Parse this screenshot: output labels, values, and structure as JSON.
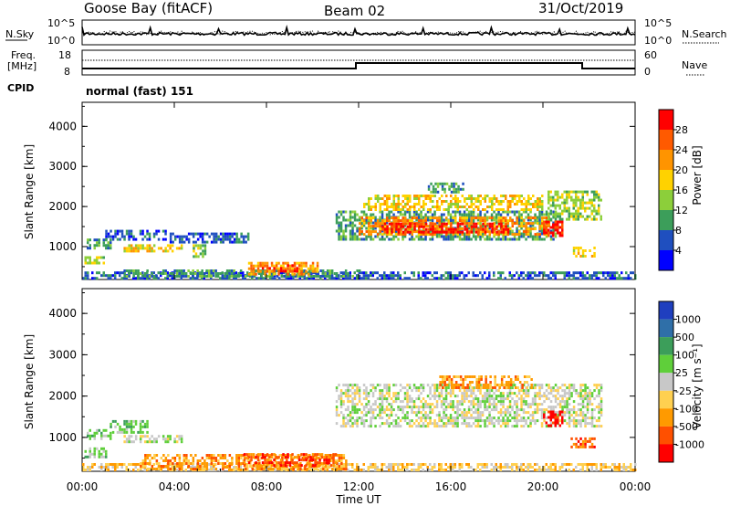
{
  "header": {
    "station": "Goose Bay (fitACF)",
    "beam": "Beam 02",
    "date": "31/Oct/2019"
  },
  "noise_panel": {
    "left_label": "N.Sky",
    "right_label": "N.Search",
    "left_ticks": [
      "10^5",
      "10^0"
    ],
    "right_ticks": [
      "10^5",
      "10^0"
    ]
  },
  "freq_panel": {
    "left_label_line1": "Freq.",
    "left_label_line2": "[MHz]",
    "left_ticks": [
      "18",
      "8"
    ],
    "right_ticks": [
      "60",
      "0"
    ],
    "right_label": "Nave"
  },
  "cpid": {
    "label": "CPID",
    "value": "normal (fast) 151"
  },
  "chart_data": [
    {
      "type": "heatmap",
      "name": "power",
      "ylabel": "Slant Range [km]",
      "yticks": [
        "4000",
        "3000",
        "2000",
        "1000"
      ],
      "ylim": [
        180,
        4600
      ],
      "xlim_hours": [
        0,
        24
      ],
      "colorbar": {
        "label": "Power [dB]",
        "ticks": [
          "28",
          "24",
          "20",
          "16",
          "12",
          "8",
          "4"
        ],
        "colors": [
          "#ff0000",
          "#ff5a00",
          "#ff9400",
          "#ffd200",
          "#8ccf3a",
          "#3c9e5a",
          "#1f4fbf",
          "#0000ff"
        ]
      },
      "regions": [
        {
          "t0": 0.0,
          "t1": 24.0,
          "r0": 200,
          "r1": 380,
          "level": 1
        },
        {
          "t0": 0.2,
          "t1": 1.2,
          "r0": 950,
          "r1": 1200,
          "level": 2
        },
        {
          "t0": 0.1,
          "t1": 1.0,
          "r0": 560,
          "r1": 760,
          "level": 3
        },
        {
          "t0": 1.0,
          "t1": 3.6,
          "r0": 1150,
          "r1": 1420,
          "level": 1
        },
        {
          "t0": 1.8,
          "t1": 4.3,
          "r0": 880,
          "r1": 1060,
          "level": 4
        },
        {
          "t0": 3.8,
          "t1": 7.2,
          "r0": 1100,
          "r1": 1350,
          "level": 1
        },
        {
          "t0": 4.8,
          "t1": 5.3,
          "r0": 750,
          "r1": 1060,
          "level": 3
        },
        {
          "t0": 1.8,
          "t1": 12.0,
          "r0": 240,
          "r1": 430,
          "level": 2
        },
        {
          "t0": 7.2,
          "t1": 10.2,
          "r0": 300,
          "r1": 620,
          "level": 5
        },
        {
          "t0": 7.6,
          "t1": 9.4,
          "r0": 360,
          "r1": 560,
          "level": 6
        },
        {
          "t0": 11.0,
          "t1": 20.6,
          "r0": 1200,
          "r1": 1900,
          "level": 2
        },
        {
          "t0": 12.0,
          "t1": 20.3,
          "r0": 1300,
          "r1": 1750,
          "level": 5
        },
        {
          "t0": 13.0,
          "t1": 18.5,
          "r0": 1350,
          "r1": 1600,
          "level": 7
        },
        {
          "t0": 12.2,
          "t1": 20.0,
          "r0": 1950,
          "r1": 2300,
          "level": 4
        },
        {
          "t0": 15.0,
          "t1": 16.5,
          "r0": 2350,
          "r1": 2600,
          "level": 2
        },
        {
          "t0": 20.0,
          "t1": 20.8,
          "r0": 1300,
          "r1": 1650,
          "level": 7
        },
        {
          "t0": 20.2,
          "t1": 22.5,
          "r0": 1700,
          "r1": 2400,
          "level": 3
        },
        {
          "t0": 21.3,
          "t1": 22.2,
          "r0": 780,
          "r1": 1000,
          "level": 4
        }
      ]
    },
    {
      "type": "heatmap",
      "name": "velocity",
      "ylabel": "Slant Range [km]",
      "yticks": [
        "4000",
        "3000",
        "2000",
        "1000"
      ],
      "ylim": [
        180,
        4600
      ],
      "xlim_hours": [
        0,
        24
      ],
      "xticks": [
        "00:00",
        "04:00",
        "08:00",
        "12:00",
        "16:00",
        "20:00",
        "00:00"
      ],
      "xlabel": "Time UT",
      "colorbar": {
        "label": "Velocity [m s⁻¹]",
        "ticks": [
          "1000",
          "500",
          "100",
          "25",
          "-25",
          "-100",
          "-500",
          "-1000"
        ],
        "colors": [
          "#1f3fbf",
          "#2f6fa8",
          "#3c9e5a",
          "#5fcf3a",
          "#c8c8c8",
          "#ffd050",
          "#ff9a00",
          "#ff5000",
          "#ff0000"
        ]
      },
      "regions": [
        {
          "t0": 0.0,
          "t1": 24.0,
          "r0": 200,
          "r1": 380,
          "level": 5
        },
        {
          "t0": 2.5,
          "t1": 11.5,
          "r0": 230,
          "r1": 600,
          "level": 6
        },
        {
          "t0": 7.0,
          "t1": 11.0,
          "r0": 300,
          "r1": 620,
          "level": 7
        },
        {
          "t0": 0.2,
          "t1": 1.2,
          "r0": 950,
          "r1": 1200,
          "level": 3
        },
        {
          "t0": 0.1,
          "t1": 1.0,
          "r0": 560,
          "r1": 760,
          "level": 3
        },
        {
          "t0": 1.8,
          "t1": 4.3,
          "r0": 880,
          "r1": 1060,
          "level": 4
        },
        {
          "t0": 1.2,
          "t1": 2.8,
          "r0": 1150,
          "r1": 1420,
          "level": 3
        },
        {
          "t0": 11.0,
          "t1": 22.5,
          "r0": 1250,
          "r1": 2300,
          "level": 4
        },
        {
          "t0": 15.5,
          "t1": 19.5,
          "r0": 2200,
          "r1": 2500,
          "level": 6
        },
        {
          "t0": 20.0,
          "t1": 20.8,
          "r0": 1300,
          "r1": 1650,
          "level": 8
        },
        {
          "t0": 21.2,
          "t1": 22.2,
          "r0": 780,
          "r1": 1000,
          "level": 7
        }
      ]
    }
  ]
}
